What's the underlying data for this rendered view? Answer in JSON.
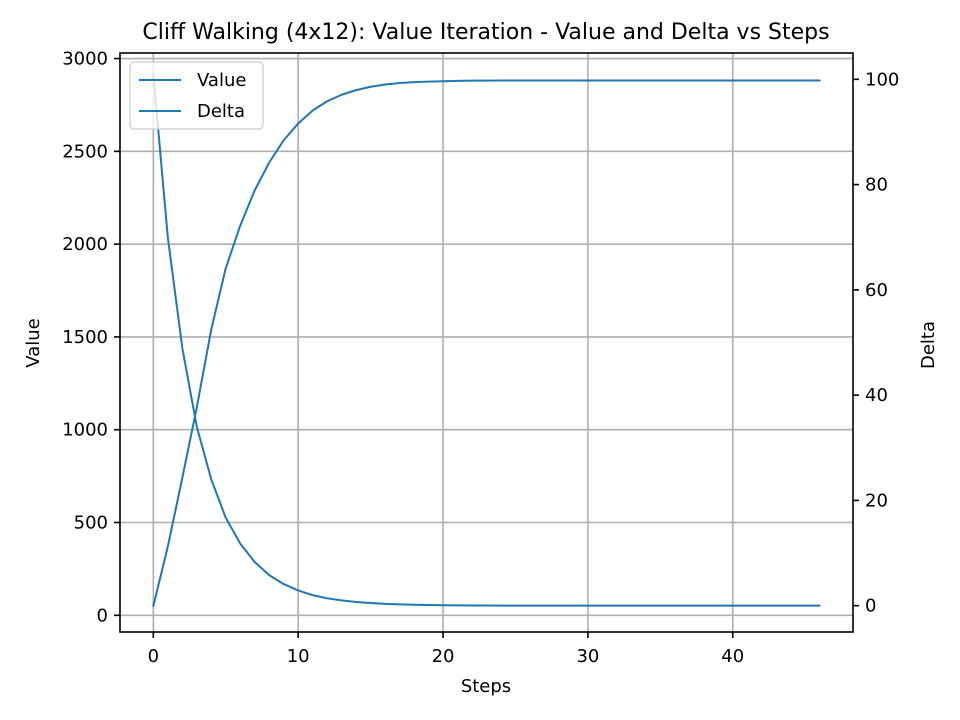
{
  "chart_data": {
    "type": "line",
    "title": "Cliff Walking (4x12): Value Iteration - Value and Delta vs Steps",
    "xlabel": "Steps",
    "ylabel": "Value",
    "ylabel_right": "Delta",
    "xlim": [
      -2.3,
      48.3
    ],
    "ylim": [
      -90,
      3030
    ],
    "ylim_right": [
      -5,
      105
    ],
    "x_ticks": [
      0,
      10,
      20,
      30,
      40
    ],
    "y_ticks": [
      0,
      500,
      1000,
      1500,
      2000,
      2500,
      3000
    ],
    "y_ticks_right": [
      0,
      20,
      40,
      60,
      80,
      100
    ],
    "grid": true,
    "legend_position": "top-left",
    "color": "#1f77b4",
    "series": [
      {
        "name": "Value",
        "axis": "left",
        "x": [
          0,
          1,
          2,
          3,
          4,
          5,
          6,
          7,
          8,
          9,
          10,
          11,
          12,
          13,
          14,
          15,
          16,
          17,
          18,
          19,
          20,
          21,
          22,
          23,
          24,
          25,
          26,
          27,
          28,
          29,
          30,
          31,
          32,
          33,
          34,
          35,
          36,
          37,
          38,
          39,
          40,
          41,
          42,
          43,
          44,
          45,
          46
        ],
        "values": [
          50,
          370,
          740,
          1120,
          1540,
          1870,
          2100,
          2290,
          2440,
          2560,
          2650,
          2720,
          2770,
          2805,
          2830,
          2848,
          2860,
          2868,
          2873,
          2876,
          2878,
          2880,
          2881,
          2881,
          2882,
          2882,
          2882,
          2882,
          2882,
          2882,
          2882,
          2882,
          2882,
          2882,
          2882,
          2882,
          2882,
          2882,
          2882,
          2882,
          2882,
          2882,
          2882,
          2882,
          2882,
          2882,
          2882
        ]
      },
      {
        "name": "Delta",
        "axis": "right",
        "x": [
          0,
          1,
          2,
          3,
          4,
          5,
          6,
          7,
          8,
          9,
          10,
          11,
          12,
          13,
          14,
          15,
          16,
          17,
          18,
          19,
          20,
          21,
          22,
          23,
          24,
          25,
          26,
          27,
          28,
          29,
          30,
          31,
          32,
          33,
          34,
          35,
          36,
          37,
          38,
          39,
          40,
          41,
          42,
          43,
          44,
          45,
          46
        ],
        "values": [
          101,
          70,
          49,
          34,
          24,
          16.7,
          11.8,
          8.3,
          5.8,
          4.1,
          2.9,
          2.0,
          1.4,
          1.0,
          0.7,
          0.5,
          0.35,
          0.25,
          0.18,
          0.13,
          0.09,
          0.06,
          0.04,
          0.03,
          0.02,
          0.01,
          0.01,
          0.01,
          0,
          0,
          0,
          0,
          0,
          0,
          0,
          0,
          0,
          0,
          0,
          0,
          0,
          0,
          0,
          0,
          0,
          0,
          0
        ]
      }
    ]
  }
}
